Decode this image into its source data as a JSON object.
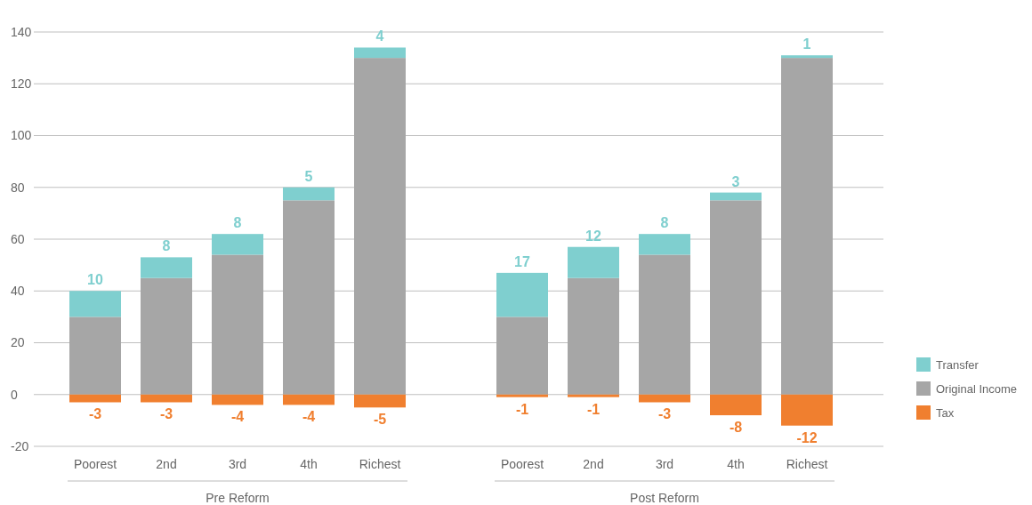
{
  "chart_data": {
    "type": "bar",
    "stacked": true,
    "categories": [
      "Poorest",
      "2nd",
      "3rd",
      "4th",
      "Richest",
      null,
      "Poorest",
      "2nd",
      "3rd",
      "4th",
      "Richest"
    ],
    "series": [
      {
        "name": "Original Income",
        "color": "#a6a6a6",
        "values": [
          30,
          45,
          54,
          75,
          130,
          null,
          30,
          45,
          54,
          75,
          130
        ]
      },
      {
        "name": "Transfer",
        "color": "#7fcfcf",
        "values": [
          10,
          8,
          8,
          5,
          4,
          null,
          17,
          12,
          8,
          3,
          1
        ],
        "value_labels": [
          "10",
          "8",
          "8",
          "5",
          "4",
          null,
          "17",
          "12",
          "8",
          "3",
          "1"
        ]
      },
      {
        "name": "Tax",
        "color": "#f07f2f",
        "values": [
          -3,
          -3,
          -4,
          -4,
          -5,
          null,
          -1,
          -1,
          -3,
          -8,
          -12
        ],
        "value_labels": [
          "-3",
          "-3",
          "-4",
          "-4",
          "-5",
          null,
          "-1",
          "-1",
          "-3",
          "-8",
          "-12"
        ]
      }
    ],
    "ylim": [
      -20,
      140
    ],
    "yticks": [
      -20,
      0,
      20,
      40,
      60,
      80,
      100,
      120,
      140
    ],
    "grid": "y",
    "legend": "right",
    "annotations": [
      "Pre Reform",
      "Post Reform"
    ]
  }
}
